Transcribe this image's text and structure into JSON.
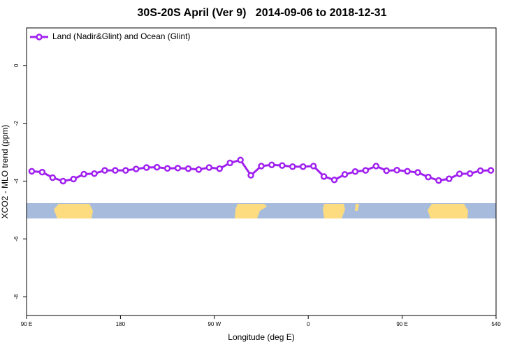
{
  "chart_data": {
    "type": "line",
    "title": "30S-20S April (Ver 9)   2014-09-06 to 2018-12-31",
    "x_label": "Longitude (deg E)",
    "y_label": "XCO2 - MLO trend (ppm)",
    "x": [
      95,
      105,
      115,
      125,
      135,
      145,
      155,
      165,
      175,
      185,
      195,
      205,
      215,
      225,
      235,
      245,
      255,
      265,
      275,
      285,
      295,
      305,
      315,
      325,
      335,
      345,
      355,
      365,
      375,
      385,
      395,
      405,
      415,
      425,
      435,
      445,
      455,
      465,
      475,
      485,
      495,
      505,
      515,
      525,
      535
    ],
    "series": [
      {
        "name": "Land (Nadir&Glint) and Ocean (Glint)",
        "color": "#a020f0",
        "values": [
          -3.66,
          -3.69,
          -3.88,
          -4.0,
          -3.93,
          -3.76,
          -3.74,
          -3.63,
          -3.63,
          -3.63,
          -3.58,
          -3.53,
          -3.52,
          -3.56,
          -3.55,
          -3.57,
          -3.6,
          -3.53,
          -3.57,
          -3.37,
          -3.27,
          -3.8,
          -3.48,
          -3.44,
          -3.46,
          -3.5,
          -3.5,
          -3.48,
          -3.84,
          -3.96,
          -3.77,
          -3.67,
          -3.63,
          -3.48,
          -3.64,
          -3.62,
          -3.66,
          -3.7,
          -3.86,
          -3.98,
          -3.92,
          -3.75,
          -3.74,
          -3.64,
          -3.63
        ]
      }
    ],
    "xlim": [
      90,
      540
    ],
    "xticks": [
      {
        "value": 90,
        "label": "90 E"
      },
      180,
      {
        "value": 270,
        "label": "90 W"
      },
      {
        "value": 360,
        "label": "0"
      },
      {
        "value": 450,
        "label": "90 E"
      },
      540
    ],
    "ylim": [
      -8.65,
      1.3
    ],
    "yticks": [
      -8,
      -6,
      -4,
      -2,
      0
    ],
    "legend": "top-left"
  }
}
